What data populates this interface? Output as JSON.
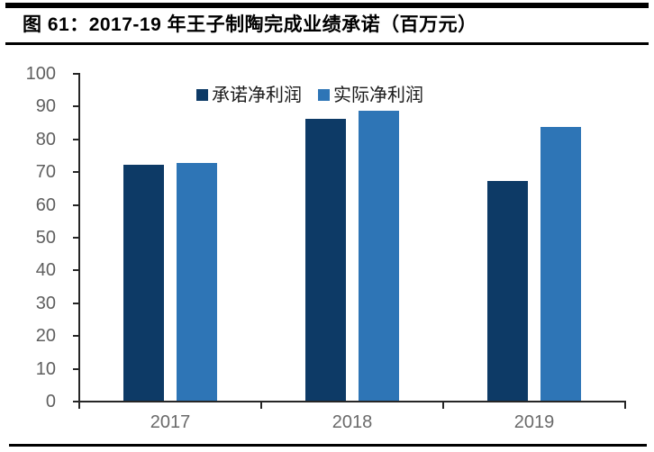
{
  "header": {
    "title": "图 61：2017-19 年王子制陶完成业绩承诺（百万元）"
  },
  "chart_data": {
    "type": "bar",
    "title": "2017-19 年王子制陶完成业绩承诺（百万元）",
    "unit": "百万元",
    "categories": [
      "2017",
      "2018",
      "2019"
    ],
    "series": [
      {
        "name": "承诺净利润",
        "color": "#0d3a66",
        "values": [
          72,
          86,
          67
        ]
      },
      {
        "name": "实际净利润",
        "color": "#2e75b6",
        "values": [
          72.5,
          88.5,
          83.5
        ]
      }
    ],
    "ylim": [
      0,
      100
    ],
    "ytick_step": 10,
    "yticks": [
      0,
      10,
      20,
      30,
      40,
      50,
      60,
      70,
      80,
      90,
      100
    ],
    "legend_position": "top-center",
    "grid": false,
    "axis_color": "#262626",
    "tick_label_color": "#6a6a6a"
  }
}
